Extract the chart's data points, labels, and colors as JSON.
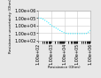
{
  "title": "",
  "ylabel": "Resistance uncertainty (Ohm)",
  "xlabel": "Resistance (Ohm)",
  "x": [
    100.0,
    200.0,
    500.0,
    1000.0,
    2000.0,
    5000.0,
    10000.0,
    20000.0,
    50000.0,
    100000.0,
    200000.0,
    500000.0,
    1000000.0
  ],
  "y": [
    100000.0,
    80000.0,
    30000.0,
    10000.0,
    5000.0,
    2000.0,
    1000.0,
    800.0,
    800.0,
    800.0,
    800.0,
    800.0,
    2000.0
  ],
  "line_color": "#00e5ff",
  "line_style": ":",
  "background_color": "#e8e8e8",
  "plot_background": "#ffffff",
  "xscale": "log",
  "yscale": "log",
  "xlim": [
    100.0,
    1000000.0
  ],
  "ylim": [
    100.0,
    1000000.0
  ],
  "yticks": [
    100.0,
    1000.0,
    10000.0,
    100000.0,
    1000000.0
  ],
  "xticks": [
    100.0,
    1000.0,
    10000.0,
    100000.0,
    1000000.0
  ],
  "grid": true,
  "grid_color": "#cccccc",
  "tick_fontsize": 3.5,
  "label_fontsize": 3.0
}
